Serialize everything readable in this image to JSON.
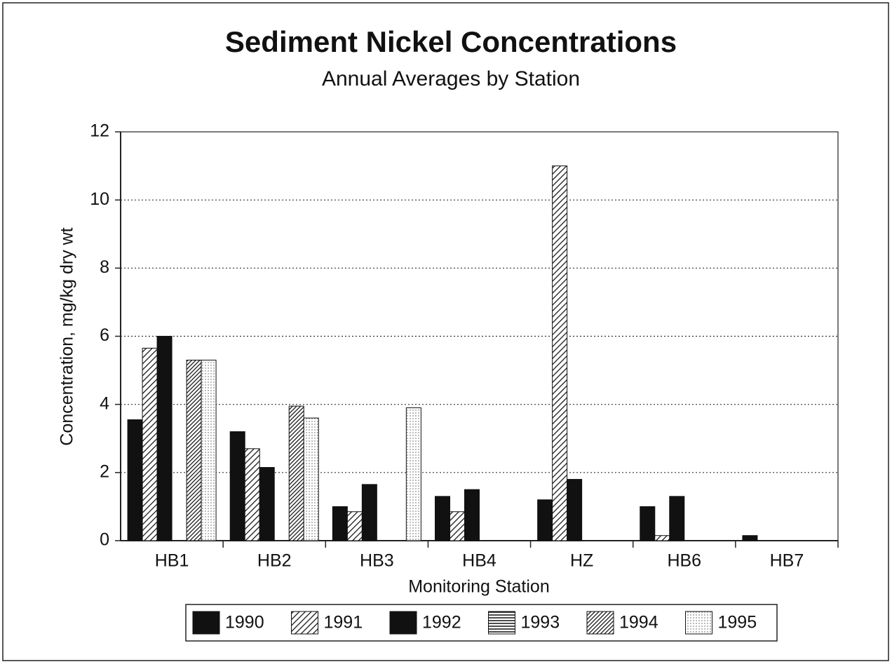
{
  "chart_data": {
    "type": "bar",
    "title": "Sediment Nickel Concentrations",
    "subtitle": "Annual Averages by Station",
    "y_label": "Concentration, mg/kg dry wt",
    "x_label": "Monitoring Station",
    "categories": [
      "HB1",
      "HB2",
      "HB3",
      "HB4",
      "HZ",
      "HB6",
      "HB7"
    ],
    "series": [
      {
        "name": "1990",
        "color": "#111111",
        "pattern": "solid",
        "values": [
          3.55,
          3.2,
          1.0,
          1.3,
          1.2,
          1.0,
          0.15
        ]
      },
      {
        "name": "1991",
        "color": "#111111",
        "pattern": "diagonal",
        "values": [
          5.65,
          2.7,
          0.85,
          0.85,
          11.0,
          0.15,
          null
        ]
      },
      {
        "name": "1992",
        "color": "#111111",
        "pattern": "solid",
        "values": [
          6.0,
          2.15,
          1.65,
          1.5,
          1.8,
          1.3,
          null
        ]
      },
      {
        "name": "1993",
        "color": "#111111",
        "pattern": "hlines",
        "values": [
          null,
          null,
          null,
          null,
          null,
          null,
          null
        ]
      },
      {
        "name": "1994",
        "color": "#111111",
        "pattern": "diagonal-dense",
        "values": [
          5.3,
          3.95,
          null,
          null,
          null,
          null,
          null
        ]
      },
      {
        "name": "1995",
        "color": "#111111",
        "pattern": "dots",
        "values": [
          5.3,
          3.6,
          3.9,
          null,
          null,
          null,
          null
        ]
      }
    ],
    "ylim": [
      0,
      12
    ],
    "yticks": [
      0,
      2,
      4,
      6,
      8,
      10,
      12
    ],
    "grid": true,
    "legend": "bottom"
  }
}
